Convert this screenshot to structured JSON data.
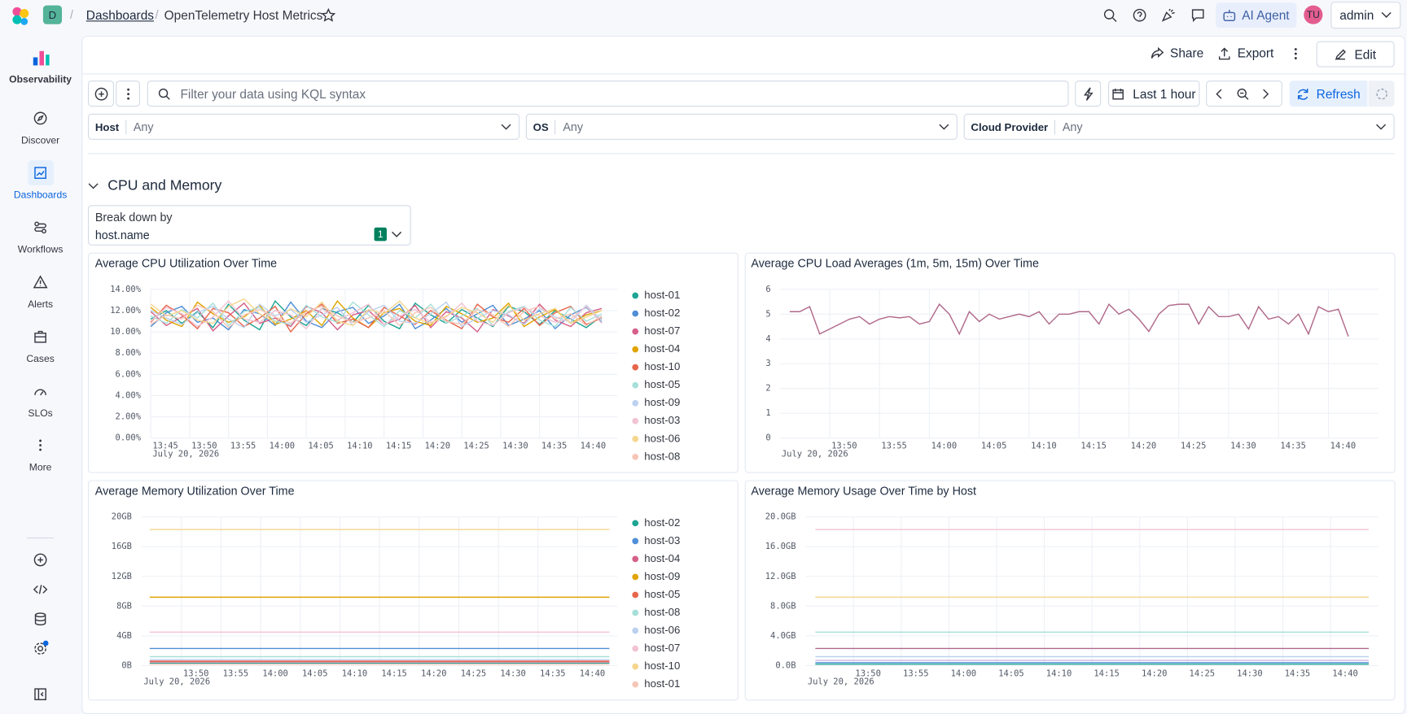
{
  "header": {
    "space": "D",
    "breadcrumbs": [
      "Dashboards",
      "OpenTelemetry Host Metrics"
    ],
    "ai_agent": "AI Agent",
    "avatar": "TU",
    "user": "admin"
  },
  "nav": {
    "items": [
      "Observability",
      "Discover",
      "Dashboards",
      "Workflows",
      "Alerts",
      "Cases",
      "SLOs",
      "More"
    ]
  },
  "toolbar": {
    "share": "Share",
    "export": "Export",
    "edit": "Edit"
  },
  "query": {
    "placeholder": "Filter your data using KQL syntax",
    "time": "Last 1 hour",
    "refresh": "Refresh"
  },
  "controls": [
    {
      "label": "Host",
      "value": "Any"
    },
    {
      "label": "OS",
      "value": "Any"
    },
    {
      "label": "Cloud Provider",
      "value": "Any"
    }
  ],
  "section": {
    "title": "CPU and Memory",
    "breakdown_label": "Break down by",
    "breakdown_value": "host.name",
    "breakdown_count": "1"
  },
  "chart_data": [
    {
      "type": "line",
      "title": "Average CPU Utilization Over Time",
      "x_sublabel": "July 20, 2026",
      "grid": true,
      "legend": "right",
      "x": [
        "13:45",
        "13:47",
        "13:49",
        "13:51",
        "13:53",
        "13:55",
        "13:57",
        "13:59",
        "14:01",
        "14:03",
        "14:05",
        "14:07",
        "14:09",
        "14:11",
        "14:13",
        "14:15",
        "14:17",
        "14:19",
        "14:21",
        "14:23",
        "14:25",
        "14:27",
        "14:29",
        "14:31",
        "14:33",
        "14:35",
        "14:37",
        "14:39",
        "14:41",
        "14:43"
      ],
      "xlim": [
        "13:45",
        "14:45"
      ],
      "xticks": [
        "13:45",
        "13:50",
        "13:55",
        "14:00",
        "14:05",
        "14:10",
        "14:15",
        "14:20",
        "14:25",
        "14:30",
        "14:35",
        "14:40"
      ],
      "ylim": [
        0,
        14
      ],
      "yticks": [
        {
          "value": 0,
          "label": "0.00%"
        },
        {
          "value": 2,
          "label": "2.00%"
        },
        {
          "value": 4,
          "label": "4.00%"
        },
        {
          "value": 6,
          "label": "6.00%"
        },
        {
          "value": 8,
          "label": "8.00%"
        },
        {
          "value": 10,
          "label": "10.00%"
        },
        {
          "value": 12,
          "label": "12.00%"
        },
        {
          "value": 14,
          "label": "14.00%"
        }
      ],
      "series": [
        {
          "name": "host-01",
          "color": "#1ea593",
          "values": [
            11.2,
            12.0,
            10.8,
            11.9,
            10.4,
            12.6,
            11.1,
            10.2,
            12.9,
            11.4,
            10.6,
            12.2,
            11.8,
            10.9,
            12.5,
            11.0,
            10.3,
            12.7,
            11.6,
            10.8,
            12.1,
            11.3,
            10.5,
            12.4,
            11.9,
            10.7,
            12.0,
            11.2,
            10.4,
            11.5
          ]
        },
        {
          "name": "host-02",
          "color": "#4f8fd6",
          "values": [
            10.5,
            11.8,
            12.4,
            10.9,
            11.3,
            10.2,
            12.1,
            11.7,
            10.6,
            12.8,
            11.0,
            10.4,
            11.9,
            12.3,
            10.8,
            11.5,
            12.6,
            10.3,
            11.1,
            12.2,
            10.9,
            11.7,
            12.5,
            10.6,
            11.2,
            12.0,
            10.3,
            11.6,
            12.3,
            10.9
          ]
        },
        {
          "name": "host-07",
          "color": "#d6608a",
          "values": [
            11.9,
            10.6,
            11.4,
            12.2,
            10.1,
            11.5,
            12.7,
            10.8,
            11.3,
            10.5,
            12.4,
            11.8,
            10.2,
            11.6,
            12.0,
            10.7,
            11.2,
            12.5,
            10.4,
            11.9,
            11.3,
            10.0,
            12.1,
            11.5,
            10.8,
            12.6,
            11.1,
            10.5,
            11.8,
            12.2
          ]
        },
        {
          "name": "host-04",
          "color": "#e0a400",
          "values": [
            12.3,
            11.1,
            10.5,
            12.8,
            11.7,
            10.9,
            11.4,
            12.5,
            10.7,
            11.2,
            12.0,
            10.6,
            12.9,
            11.3,
            10.4,
            11.8,
            12.2,
            11.0,
            10.6,
            12.4,
            11.7,
            10.9,
            11.3,
            12.7,
            10.5,
            11.4,
            12.1,
            10.8,
            11.6,
            12.0
          ]
        },
        {
          "name": "host-10",
          "color": "#e7664c",
          "values": [
            10.9,
            12.5,
            11.6,
            10.3,
            12.2,
            11.8,
            10.5,
            11.3,
            12.4,
            10.0,
            11.7,
            12.6,
            10.8,
            11.2,
            10.4,
            12.3,
            11.5,
            10.7,
            12.0,
            11.1,
            10.3,
            12.6,
            11.4,
            10.9,
            12.2,
            10.6,
            11.8,
            12.4,
            10.7,
            11.3
          ]
        },
        {
          "name": "host-05",
          "color": "#a6e0da",
          "values": [
            11.5,
            10.8,
            12.1,
            11.3,
            12.7,
            10.6,
            11.9,
            12.3,
            11.0,
            10.7,
            12.5,
            11.4,
            10.9,
            12.8,
            11.6,
            10.5,
            12.0,
            11.3,
            12.6,
            10.8,
            11.5,
            12.2,
            10.6,
            11.9,
            12.4,
            11.1,
            10.5,
            12.3,
            11.0,
            11.7
          ]
        },
        {
          "name": "host-09",
          "color": "#bcd1ef",
          "values": [
            12.0,
            11.3,
            10.7,
            11.8,
            12.4,
            11.2,
            10.4,
            12.6,
            11.5,
            12.1,
            10.9,
            11.6,
            12.3,
            10.6,
            11.9,
            12.5,
            11.0,
            10.8,
            11.7,
            12.8,
            10.5,
            11.3,
            12.0,
            11.6,
            10.7,
            12.2,
            11.4,
            10.9,
            12.5,
            11.1
          ]
        },
        {
          "name": "host-03",
          "color": "#f2c3d3",
          "values": [
            11.0,
            12.3,
            11.7,
            10.5,
            11.4,
            12.9,
            11.2,
            10.9,
            12.0,
            11.6,
            10.3,
            12.2,
            11.1,
            11.8,
            12.6,
            10.7,
            11.5,
            12.1,
            10.9,
            11.4,
            12.7,
            11.0,
            10.6,
            11.8,
            12.3,
            11.5,
            10.9,
            11.2,
            12.4,
            10.8
          ]
        },
        {
          "name": "host-06",
          "color": "#f5d68f",
          "values": [
            12.6,
            11.5,
            12.0,
            11.1,
            10.8,
            12.4,
            13.1,
            11.7,
            10.9,
            12.2,
            11.4,
            12.8,
            11.0,
            10.6,
            12.1,
            11.7,
            12.9,
            11.3,
            10.8,
            11.5,
            12.3,
            11.8,
            10.9,
            12.5,
            11.1,
            11.7,
            12.2,
            10.8,
            11.4,
            12.0
          ]
        },
        {
          "name": "host-08",
          "color": "#f6c6b8",
          "values": [
            10.7,
            11.6,
            11.2,
            12.5,
            11.9,
            10.4,
            11.6,
            12.1,
            11.4,
            10.8,
            11.9,
            12.4,
            11.5,
            10.9,
            11.3,
            12.0,
            10.6,
            11.8,
            12.3,
            11.0,
            10.7,
            12.1,
            11.6,
            10.5,
            11.9,
            12.4,
            11.2,
            11.7,
            10.6,
            11.5
          ]
        }
      ]
    },
    {
      "type": "line",
      "title": "Average CPU Load Averages (1m, 5m, 15m) Over Time",
      "x_sublabel": "July 20, 2026",
      "grid": true,
      "x": [
        "13:46",
        "13:47",
        "13:48",
        "13:49",
        "13:50",
        "13:51",
        "13:52",
        "13:53",
        "13:54",
        "13:55",
        "13:56",
        "13:57",
        "13:58",
        "13:59",
        "14:00",
        "14:01",
        "14:02",
        "14:03",
        "14:04",
        "14:05",
        "14:06",
        "14:07",
        "14:08",
        "14:09",
        "14:10",
        "14:11",
        "14:12",
        "14:13",
        "14:14",
        "14:15",
        "14:16",
        "14:17",
        "14:18",
        "14:19",
        "14:20",
        "14:21",
        "14:22",
        "14:23",
        "14:24",
        "14:25",
        "14:26",
        "14:27",
        "14:28",
        "14:29",
        "14:30",
        "14:31",
        "14:32",
        "14:33",
        "14:34",
        "14:35",
        "14:36",
        "14:37",
        "14:38",
        "14:39",
        "14:40",
        "14:41",
        "14:42"
      ],
      "xlim": [
        "13:45",
        "14:45"
      ],
      "xticks": [
        "13:50",
        "13:55",
        "14:00",
        "14:05",
        "14:10",
        "14:15",
        "14:20",
        "14:25",
        "14:30",
        "14:35",
        "14:40"
      ],
      "ylim": [
        0,
        6
      ],
      "yticks": [
        0,
        1,
        2,
        3,
        4,
        5,
        6
      ],
      "series": [
        {
          "color": "#b0698a",
          "values": [
            5.1,
            5.1,
            5.3,
            4.2,
            4.4,
            4.6,
            4.8,
            4.9,
            4.6,
            4.8,
            4.9,
            4.85,
            4.9,
            4.6,
            4.7,
            5.4,
            5.0,
            4.2,
            5.1,
            4.7,
            5.0,
            4.8,
            4.9,
            5.0,
            4.9,
            5.1,
            4.6,
            5.0,
            5.0,
            5.1,
            5.1,
            4.6,
            5.4,
            5.0,
            5.2,
            4.8,
            4.3,
            5.0,
            5.35,
            5.4,
            5.4,
            4.6,
            5.3,
            4.9,
            4.9,
            5.0,
            4.4,
            5.3,
            4.8,
            4.9,
            4.6,
            5.0,
            4.2,
            5.3,
            5.1,
            5.2,
            4.1
          ]
        }
      ]
    },
    {
      "type": "line",
      "title": "Average Memory Utilization Over Time",
      "x_sublabel": "July 20, 2026",
      "grid": true,
      "legend": "right",
      "x": [
        "13:46",
        "14:44"
      ],
      "xlim": [
        "13:45",
        "14:45"
      ],
      "xticks": [
        "13:50",
        "13:55",
        "14:00",
        "14:05",
        "14:10",
        "14:15",
        "14:20",
        "14:25",
        "14:30",
        "14:35",
        "14:40"
      ],
      "ylim": [
        0,
        20
      ],
      "yticks": [
        {
          "value": 0,
          "label": "0B"
        },
        {
          "value": 4,
          "label": "4GB"
        },
        {
          "value": 8,
          "label": "8GB"
        },
        {
          "value": 12,
          "label": "12GB"
        },
        {
          "value": 16,
          "label": "16GB"
        },
        {
          "value": 20,
          "label": "20GB"
        }
      ],
      "series": [
        {
          "name": "host-02",
          "color": "#1ea593",
          "values": [
            0.3,
            0.3
          ]
        },
        {
          "name": "host-03",
          "color": "#4f8fd6",
          "values": [
            2.3,
            2.3
          ]
        },
        {
          "name": "host-04",
          "color": "#d6608a",
          "values": [
            0.5,
            0.5
          ]
        },
        {
          "name": "host-09",
          "color": "#e0a400",
          "values": [
            9.2,
            9.2
          ]
        },
        {
          "name": "host-05",
          "color": "#e7664c",
          "values": [
            0.6,
            0.6
          ]
        },
        {
          "name": "host-08",
          "color": "#a6e0da",
          "values": [
            1.2,
            1.2
          ]
        },
        {
          "name": "host-06",
          "color": "#bcd1ef",
          "values": [
            0.8,
            0.8
          ]
        },
        {
          "name": "host-07",
          "color": "#f2c3d3",
          "values": [
            4.5,
            4.5
          ]
        },
        {
          "name": "host-10",
          "color": "#f5d68f",
          "values": [
            18.3,
            18.3
          ]
        },
        {
          "name": "host-01",
          "color": "#f6c6b8",
          "values": [
            0.2,
            0.2
          ]
        }
      ]
    },
    {
      "type": "line",
      "title": "Average Memory Usage Over Time by Host",
      "x_sublabel": "July 20, 2026",
      "grid": true,
      "x": [
        "13:46",
        "14:44"
      ],
      "xlim": [
        "13:45",
        "14:45"
      ],
      "xticks": [
        "13:50",
        "13:55",
        "14:00",
        "14:05",
        "14:10",
        "14:15",
        "14:20",
        "14:25",
        "14:30",
        "14:35",
        "14:40"
      ],
      "ylim": [
        0,
        20
      ],
      "yticks": [
        {
          "value": 0,
          "label": "0.0B"
        },
        {
          "value": 4,
          "label": "4.0GB"
        },
        {
          "value": 8,
          "label": "8.0GB"
        },
        {
          "value": 12,
          "label": "12.0GB"
        },
        {
          "value": 16,
          "label": "16.0GB"
        },
        {
          "value": 20,
          "label": "20.0GB"
        }
      ],
      "series": [
        {
          "color": "#f2c3d3",
          "values": [
            18.3,
            18.3
          ]
        },
        {
          "color": "#f5d68f",
          "values": [
            9.2,
            9.2
          ]
        },
        {
          "color": "#a6e0da",
          "values": [
            4.5,
            4.5
          ]
        },
        {
          "color": "#b0698a",
          "values": [
            2.3,
            2.3
          ]
        },
        {
          "color": "#bcd1ef",
          "values": [
            1.2,
            1.2
          ]
        },
        {
          "color": "#cdb6e0",
          "values": [
            0.7,
            0.7
          ]
        },
        {
          "color": "#4f8fd6",
          "values": [
            0.4,
            0.4
          ]
        },
        {
          "color": "#1ea593",
          "values": [
            0.2,
            0.2
          ]
        }
      ]
    }
  ]
}
